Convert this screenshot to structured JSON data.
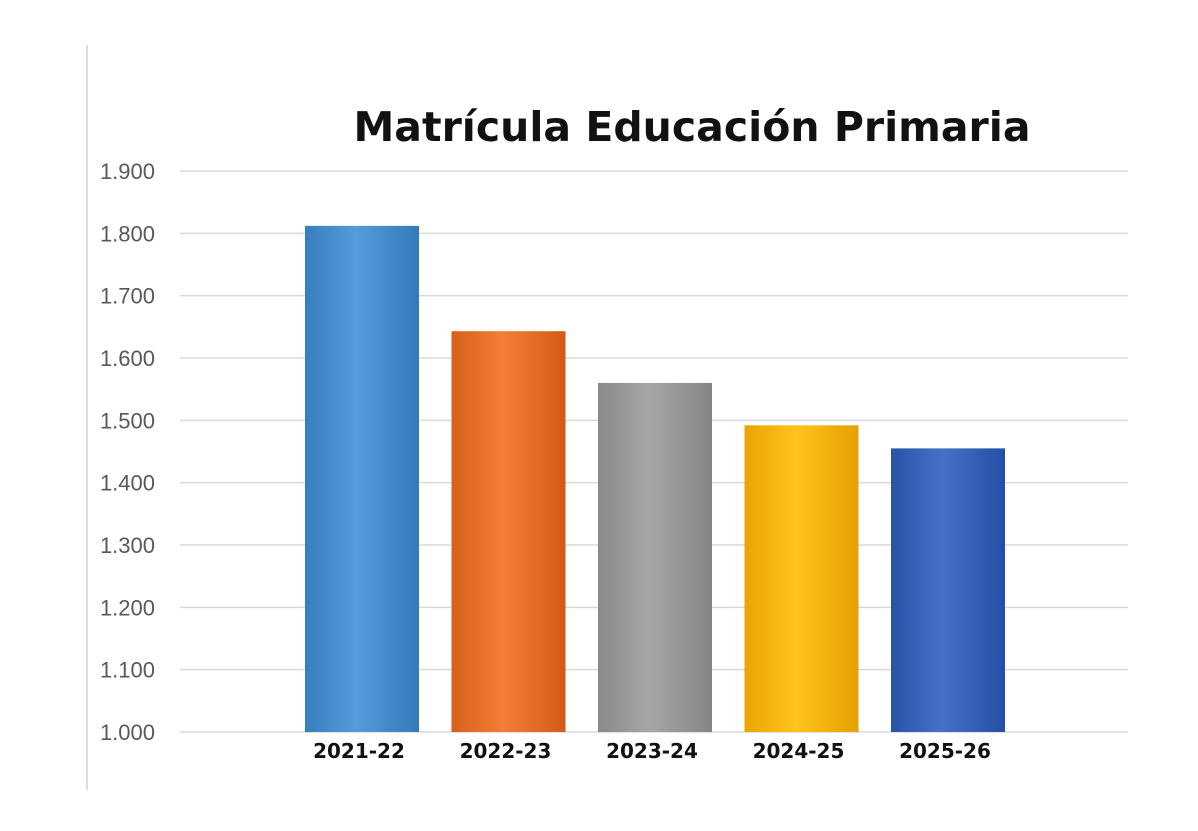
{
  "chart_data": {
    "type": "bar",
    "title": "Matrícula Educación Primaria",
    "xlabel": "",
    "ylabel": "",
    "categories": [
      "2021-22",
      "2022-23",
      "2023-24",
      "2024-25",
      "2025-26"
    ],
    "values": [
      1812,
      1643,
      1560,
      1492,
      1455
    ],
    "ylim": [
      1000,
      1900
    ],
    "yticks": [
      1000,
      1100,
      1200,
      1300,
      1400,
      1500,
      1600,
      1700,
      1800,
      1900
    ],
    "ytick_labels": [
      "1.000",
      "1.100",
      "1.200",
      "1.300",
      "1.400",
      "1.500",
      "1.600",
      "1.700",
      "1.800",
      "1.900"
    ],
    "grid": true,
    "legend": "none",
    "colors": [
      "#4a8fd0",
      "#e8712c",
      "#9b9b9b",
      "#fbb710",
      "#3a65bb"
    ]
  }
}
